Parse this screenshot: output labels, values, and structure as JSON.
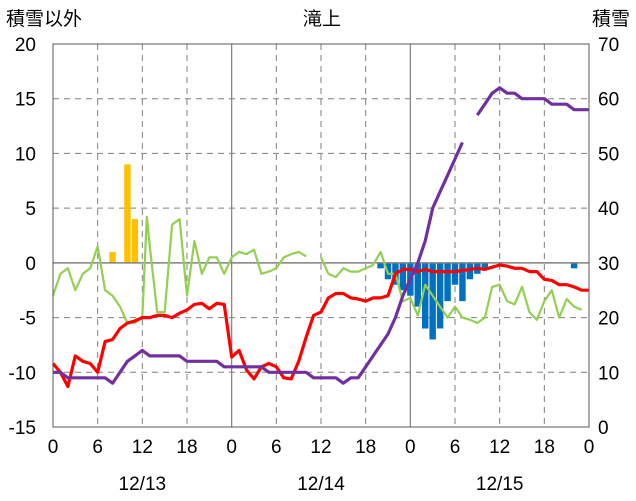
{
  "chart_data": {
    "type": "line",
    "title": "滝上",
    "left_axis": {
      "label": "積雪以外",
      "ylim": [
        -15,
        20
      ],
      "ticks": [
        20,
        15,
        10,
        5,
        0,
        -5,
        -10,
        -15
      ]
    },
    "right_axis": {
      "label": "積雪",
      "ylim": [
        0,
        70
      ],
      "ticks": [
        70,
        60,
        50,
        40,
        30,
        20,
        10,
        0
      ]
    },
    "x_hour_labels": [
      "0",
      "6",
      "12",
      "18",
      "0",
      "6",
      "12",
      "18",
      "0",
      "6",
      "12",
      "18",
      "0"
    ],
    "date_labels": [
      "12/13",
      "12/14",
      "12/15"
    ],
    "hours_total": 72,
    "colors": {
      "precip": "#FFC000",
      "snow_change": "#0070C0",
      "temperature": "#FF0000",
      "wind": "#92D050",
      "snow_depth": "#7030A0",
      "grid": "#7f7f7f",
      "zero_line": "#7f7f7f",
      "day_line": "#7f7f7f"
    },
    "precipitation_bars": [
      {
        "hour": 8,
        "value": 1
      },
      {
        "hour": 10,
        "value": 9
      },
      {
        "hour": 11,
        "value": 4
      }
    ],
    "snow_change_bars": [
      {
        "hour": 44,
        "value": -0.5
      },
      {
        "hour": 45,
        "value": -1.5
      },
      {
        "hour": 46,
        "value": -2.0
      },
      {
        "hour": 47,
        "value": -2.5
      },
      {
        "hour": 48,
        "value": -3.0
      },
      {
        "hour": 49,
        "value": -4.0
      },
      {
        "hour": 50,
        "value": -6.0
      },
      {
        "hour": 51,
        "value": -7.0
      },
      {
        "hour": 52,
        "value": -6.0
      },
      {
        "hour": 53,
        "value": -3.5
      },
      {
        "hour": 54,
        "value": -2.0
      },
      {
        "hour": 55,
        "value": -3.5
      },
      {
        "hour": 56,
        "value": -1.5
      },
      {
        "hour": 57,
        "value": -1.0
      },
      {
        "hour": 58,
        "value": -0.5
      },
      {
        "hour": 70,
        "value": -0.5
      }
    ],
    "temperature": [
      [
        0,
        -9.2
      ],
      [
        1,
        -10.0
      ],
      [
        2,
        -11.3
      ],
      [
        3,
        -8.5
      ],
      [
        4,
        -9.0
      ],
      [
        5,
        -9.2
      ],
      [
        6,
        -10.0
      ],
      [
        7,
        -7.2
      ],
      [
        8,
        -7.0
      ],
      [
        9,
        -6.0
      ],
      [
        10,
        -5.5
      ],
      [
        11,
        -5.3
      ],
      [
        12,
        -5.0
      ],
      [
        13,
        -5.0
      ],
      [
        14,
        -4.8
      ],
      [
        15,
        -4.8
      ],
      [
        16,
        -5.0
      ],
      [
        17,
        -4.6
      ],
      [
        18,
        -4.3
      ],
      [
        19,
        -3.8
      ],
      [
        20,
        -3.7
      ],
      [
        21,
        -4.2
      ],
      [
        22,
        -3.7
      ],
      [
        23,
        -3.8
      ],
      [
        24,
        -8.6
      ],
      [
        25,
        -8.0
      ],
      [
        26,
        -9.8
      ],
      [
        27,
        -10.6
      ],
      [
        28,
        -9.5
      ],
      [
        29,
        -9.2
      ],
      [
        30,
        -9.5
      ],
      [
        31,
        -10.5
      ],
      [
        32,
        -10.6
      ],
      [
        33,
        -9.0
      ],
      [
        34,
        -6.8
      ],
      [
        35,
        -4.8
      ],
      [
        36,
        -4.5
      ],
      [
        37,
        -3.2
      ],
      [
        38,
        -2.8
      ],
      [
        39,
        -2.8
      ],
      [
        40,
        -3.2
      ],
      [
        41,
        -3.3
      ],
      [
        42,
        -3.5
      ],
      [
        43,
        -3.2
      ],
      [
        44,
        -3.2
      ],
      [
        45,
        -3.0
      ],
      [
        46,
        -1.0
      ],
      [
        47,
        -0.6
      ],
      [
        48,
        -0.6
      ],
      [
        49,
        -0.8
      ],
      [
        50,
        -0.6
      ],
      [
        51,
        -0.8
      ],
      [
        52,
        -0.8
      ],
      [
        53,
        -0.8
      ],
      [
        54,
        -0.8
      ],
      [
        55,
        -0.7
      ],
      [
        56,
        -0.6
      ],
      [
        57,
        -0.5
      ],
      [
        58,
        -0.6
      ],
      [
        59,
        -0.4
      ],
      [
        60,
        -0.2
      ],
      [
        61,
        -0.3
      ],
      [
        62,
        -0.5
      ],
      [
        63,
        -0.5
      ],
      [
        64,
        -0.8
      ],
      [
        65,
        -0.8
      ],
      [
        66,
        -1.5
      ],
      [
        67,
        -1.6
      ],
      [
        68,
        -2.0
      ],
      [
        69,
        -2.0
      ],
      [
        70,
        -2.2
      ],
      [
        71,
        -2.5
      ],
      [
        72,
        -2.5
      ]
    ],
    "wind_segments": [
      [
        [
          0,
          -3.0
        ],
        [
          1,
          -1.0
        ],
        [
          2,
          -0.5
        ],
        [
          3,
          -2.5
        ],
        [
          4,
          -1.0
        ],
        [
          5,
          -0.5
        ],
        [
          6,
          1.5
        ],
        [
          7,
          -2.5
        ],
        [
          8,
          -3.0
        ],
        [
          9,
          -4.0
        ],
        [
          10,
          -5.5
        ],
        [
          11,
          -5.5
        ],
        [
          12,
          -5.0
        ],
        [
          12.6,
          4.2
        ],
        [
          13,
          1.5
        ],
        [
          14,
          -4.5
        ],
        [
          15,
          -4.5
        ],
        [
          16,
          3.5
        ],
        [
          17,
          4.0
        ],
        [
          18,
          -3.0
        ],
        [
          19,
          2.0
        ],
        [
          20,
          -1.0
        ],
        [
          21,
          0.5
        ],
        [
          22,
          0.5
        ],
        [
          23,
          -1.0
        ],
        [
          24,
          0.5
        ],
        [
          25,
          1.0
        ],
        [
          26,
          0.8
        ],
        [
          27,
          1.2
        ],
        [
          28,
          -1.0
        ],
        [
          29,
          -0.8
        ],
        [
          30,
          -0.5
        ],
        [
          31,
          0.5
        ],
        [
          32,
          0.8
        ],
        [
          33,
          1.0
        ],
        [
          34,
          0.6
        ]
      ],
      [
        [
          36,
          0.5
        ],
        [
          37,
          -1.0
        ],
        [
          38,
          -1.3
        ],
        [
          39,
          -0.5
        ],
        [
          40,
          -0.8
        ],
        [
          41,
          -0.8
        ],
        [
          42,
          -0.5
        ],
        [
          43,
          -0.2
        ],
        [
          44,
          1.0
        ],
        [
          45,
          -1.0
        ],
        [
          46,
          -1.0
        ],
        [
          47,
          -3.5
        ],
        [
          48,
          -3.2
        ],
        [
          49,
          -4.8
        ],
        [
          50,
          -2.0
        ],
        [
          51,
          -3.0
        ],
        [
          52,
          -4.0
        ],
        [
          53,
          -5.0
        ],
        [
          54,
          -4.0
        ],
        [
          55,
          -5.0
        ],
        [
          56,
          -5.2
        ],
        [
          57,
          -5.5
        ],
        [
          58,
          -5.0
        ],
        [
          59,
          -2.2
        ],
        [
          60,
          -2.0
        ],
        [
          61,
          -3.5
        ],
        [
          62,
          -3.8
        ],
        [
          63,
          -2.2
        ],
        [
          64,
          -4.5
        ],
        [
          65,
          -5.2
        ],
        [
          66,
          -3.5
        ],
        [
          67,
          -2.5
        ],
        [
          68,
          -5.0
        ],
        [
          69,
          -3.3
        ],
        [
          70,
          -4.0
        ],
        [
          71,
          -4.3
        ]
      ]
    ],
    "snow_depth_segments": [
      [
        [
          0,
          10.0
        ],
        [
          1,
          10.0
        ],
        [
          2,
          9.0
        ],
        [
          3,
          9.0
        ],
        [
          4,
          9.0
        ],
        [
          5,
          9.0
        ],
        [
          6,
          9.0
        ],
        [
          7,
          9.0
        ],
        [
          8,
          8.0
        ],
        [
          9,
          10.0
        ],
        [
          10,
          12.0
        ],
        [
          11,
          13.0
        ],
        [
          12,
          14.0
        ],
        [
          13,
          13.0
        ],
        [
          14,
          13.0
        ],
        [
          15,
          13.0
        ],
        [
          16,
          13.0
        ],
        [
          17,
          13.0
        ],
        [
          18,
          12.0
        ],
        [
          19,
          12.0
        ],
        [
          20,
          12.0
        ],
        [
          21,
          12.0
        ],
        [
          22,
          12.0
        ],
        [
          23,
          11.0
        ],
        [
          24,
          11.0
        ],
        [
          25,
          11.0
        ],
        [
          26,
          11.0
        ],
        [
          27,
          11.0
        ],
        [
          28,
          11.0
        ],
        [
          29,
          10.0
        ],
        [
          30,
          10.0
        ],
        [
          31,
          10.0
        ],
        [
          32,
          10.0
        ],
        [
          33,
          10.0
        ],
        [
          34,
          10.0
        ],
        [
          35,
          9.0
        ],
        [
          36,
          9.0
        ],
        [
          37,
          9.0
        ],
        [
          38,
          9.0
        ],
        [
          39,
          8.0
        ],
        [
          40,
          9.0
        ],
        [
          41,
          9.0
        ],
        [
          42,
          11.0
        ],
        [
          43,
          13.0
        ],
        [
          44,
          15.0
        ],
        [
          45,
          17.0
        ],
        [
          46,
          20.0
        ],
        [
          47,
          24.0
        ],
        [
          48,
          27.0
        ],
        [
          49,
          30.0
        ],
        [
          50,
          34.0
        ],
        [
          51,
          40.0
        ],
        [
          52,
          43.0
        ],
        [
          53,
          46.0
        ],
        [
          54,
          49.0
        ],
        [
          55,
          52.0
        ]
      ],
      [
        [
          57,
          57.0
        ],
        [
          58,
          59.0
        ],
        [
          59,
          61.0
        ],
        [
          60,
          62.0
        ],
        [
          61,
          61.0
        ],
        [
          62,
          61.0
        ],
        [
          63,
          60.0
        ],
        [
          64,
          60.0
        ],
        [
          65,
          60.0
        ],
        [
          66,
          60.0
        ],
        [
          67,
          59.0
        ],
        [
          68,
          59.0
        ],
        [
          69,
          59.0
        ],
        [
          70,
          58.0
        ],
        [
          71,
          58.0
        ],
        [
          72,
          58.0
        ]
      ]
    ]
  }
}
